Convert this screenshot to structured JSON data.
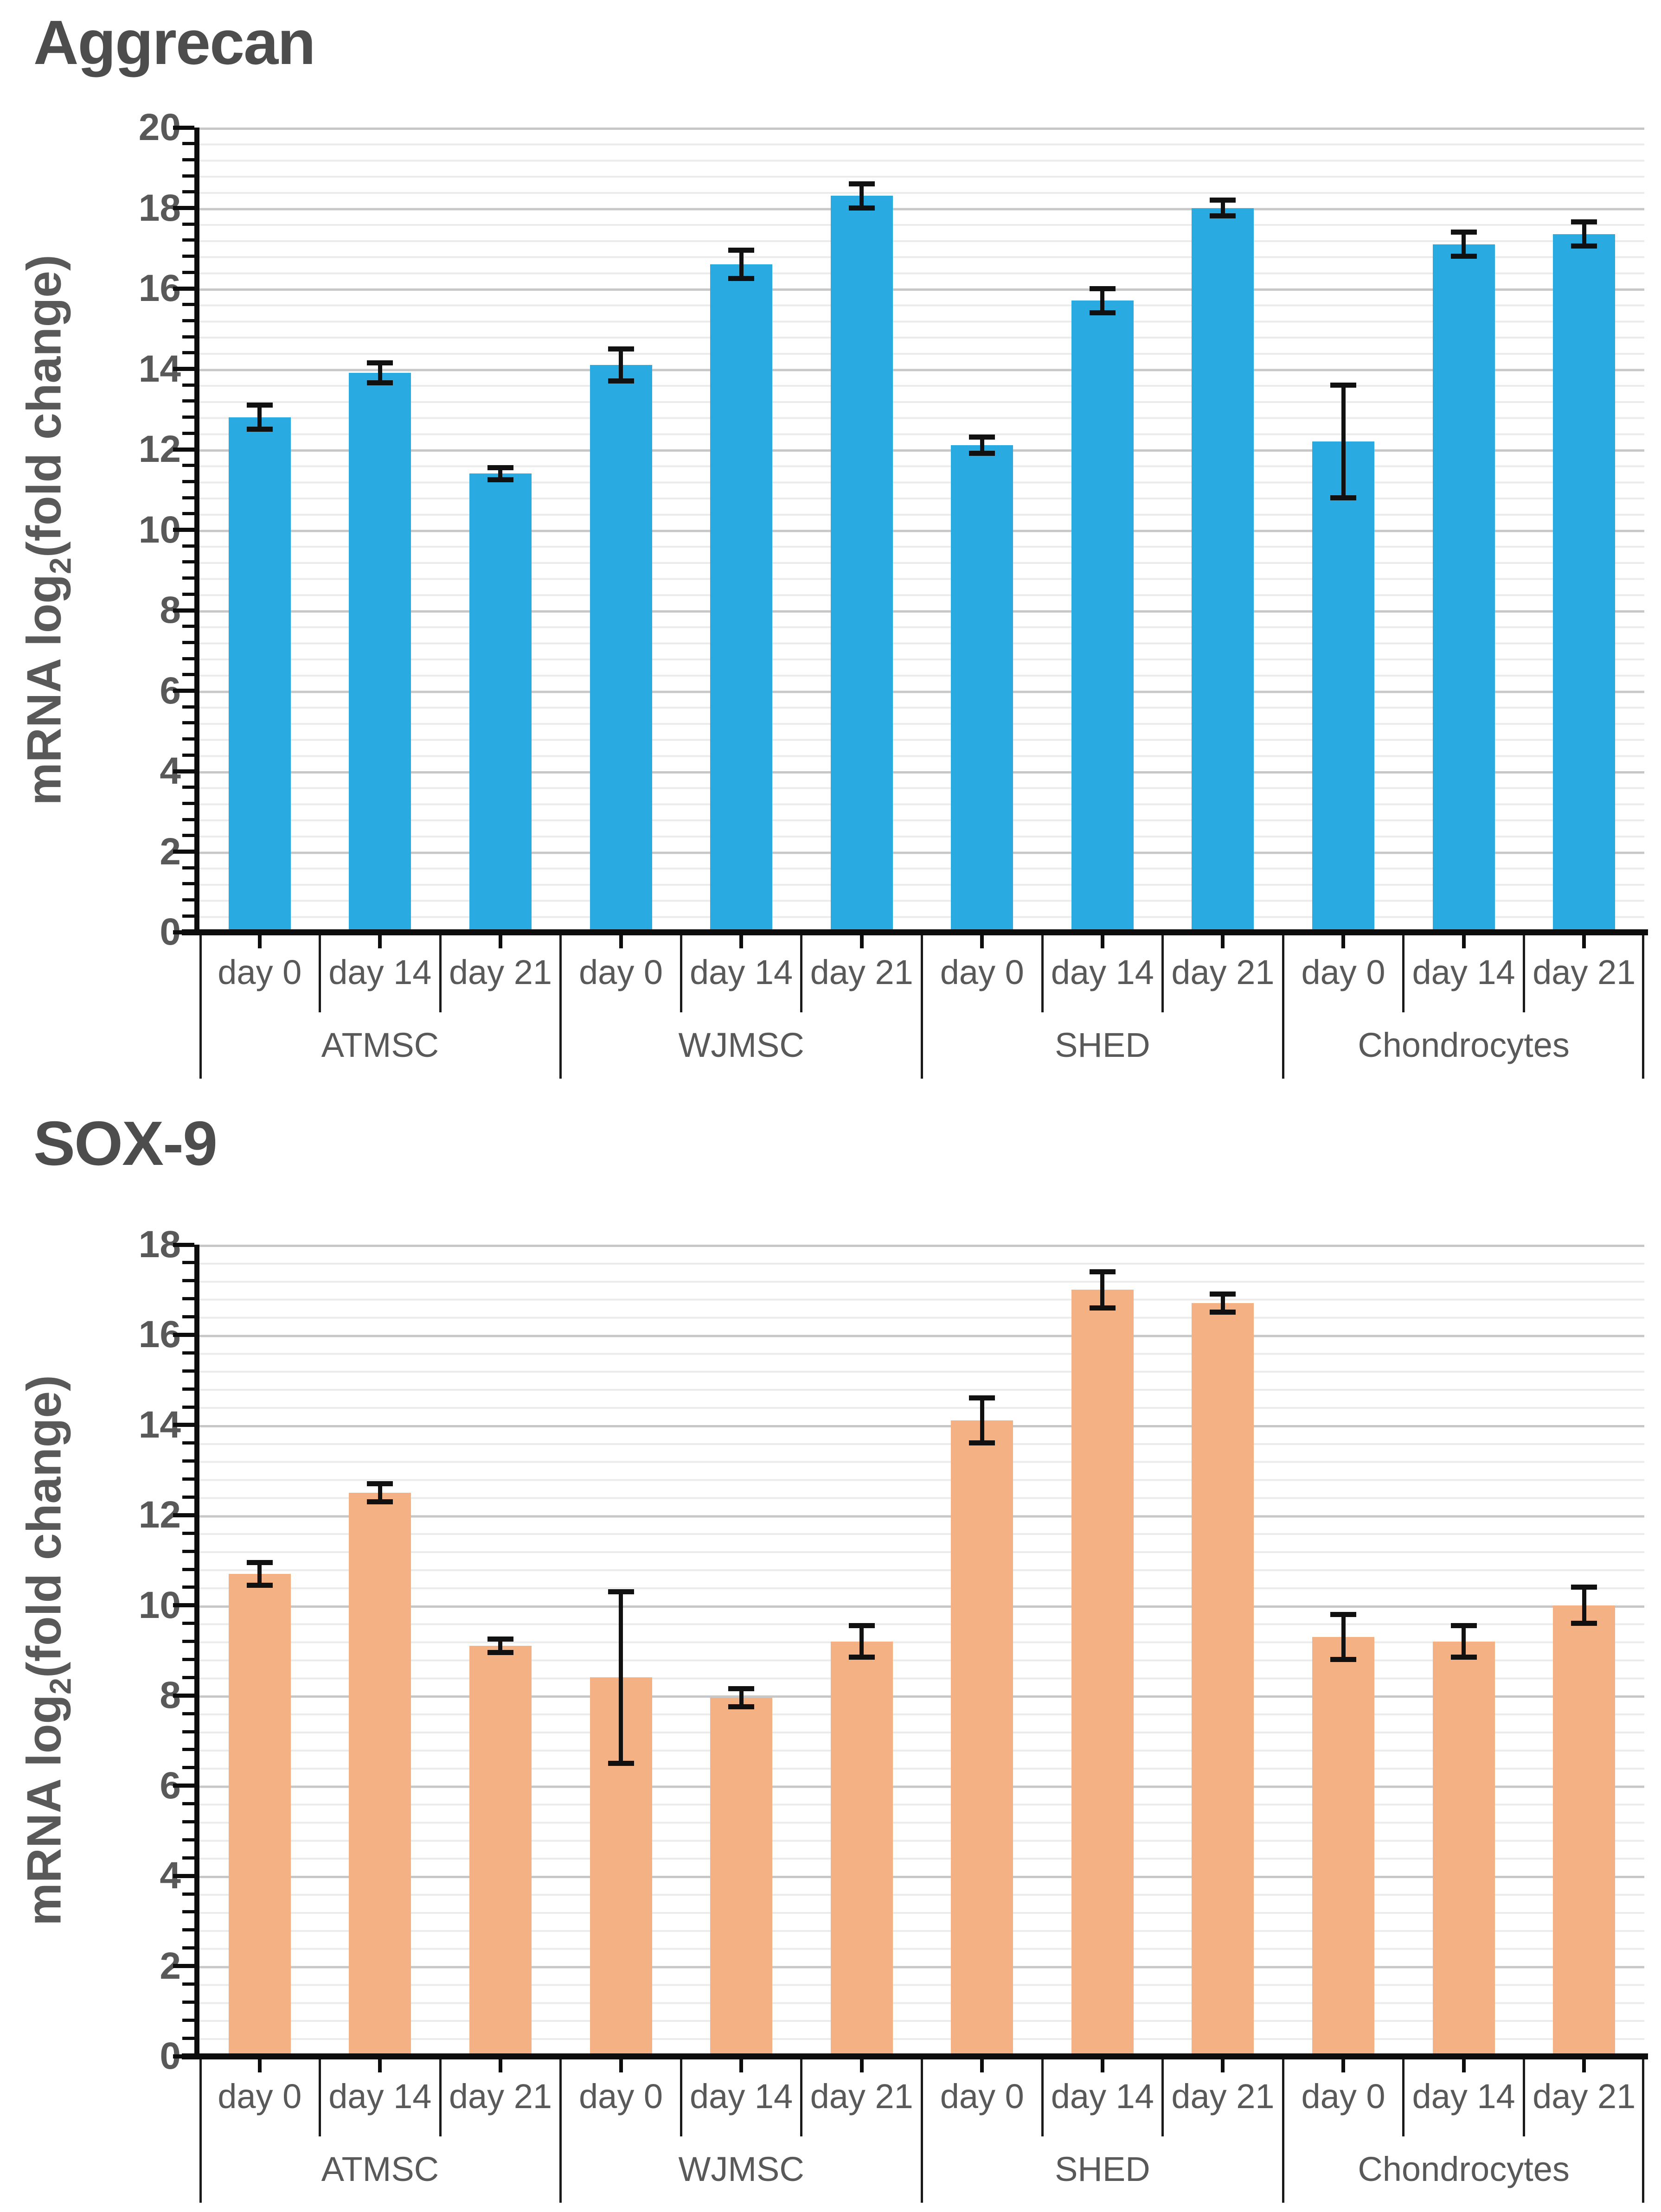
{
  "page": {
    "background": "#ffffff"
  },
  "chart_data": [
    {
      "type": "bar",
      "title": "Aggrecan",
      "ylabel": "mRNA log2(fold change)",
      "ylabel_parts": {
        "prefix": "mRNA log",
        "sub": "2",
        "suffix": "(fold change)"
      },
      "xlabel": "",
      "ylim": [
        0,
        20
      ],
      "major_gridline_step": 2,
      "minor_gridline_step": 0.4,
      "grid": "on",
      "legend": "none",
      "bar_color": "#29ABE2",
      "error_bar_color": "#111111",
      "y_tick_labels": [
        "20",
        "18",
        "16",
        "14",
        "12",
        "10",
        "8",
        "6",
        "4",
        "2",
        "0"
      ],
      "categories": [
        "day 0",
        "day 14",
        "day 21"
      ],
      "groups": [
        {
          "label": "ATMSC",
          "values": [
            12.8,
            13.9,
            11.4
          ],
          "errors": [
            0.3,
            0.25,
            0.15
          ]
        },
        {
          "label": "WJMSC",
          "values": [
            14.1,
            16.6,
            18.3
          ],
          "errors": [
            0.4,
            0.35,
            0.3
          ]
        },
        {
          "label": "SHED",
          "values": [
            12.1,
            15.7,
            18.0
          ],
          "errors": [
            0.2,
            0.3,
            0.2
          ]
        },
        {
          "label": "Chondrocytes",
          "values": [
            12.2,
            17.1,
            17.35
          ],
          "errors": [
            1.4,
            0.3,
            0.3
          ]
        }
      ]
    },
    {
      "type": "bar",
      "title": "SOX-9",
      "ylabel": "mRNA log2(fold change)",
      "ylabel_parts": {
        "prefix": "mRNA log",
        "sub": "2",
        "suffix": "(fold change)"
      },
      "xlabel": "",
      "ylim": [
        0,
        18
      ],
      "major_gridline_step": 2,
      "minor_gridline_step": 0.4,
      "grid": "on",
      "legend": "none",
      "bar_color": "#F4B183",
      "error_bar_color": "#111111",
      "y_tick_labels": [
        "18",
        "16",
        "14",
        "12",
        "10",
        "8",
        "6",
        "4",
        "2",
        "0"
      ],
      "categories": [
        "day 0",
        "day 14",
        "day 21"
      ],
      "groups": [
        {
          "label": "ATMSC",
          "values": [
            10.7,
            12.5,
            9.1
          ],
          "errors": [
            0.25,
            0.2,
            0.15
          ]
        },
        {
          "label": "WJMSC",
          "values": [
            8.4,
            7.95,
            9.2
          ],
          "errors": [
            1.9,
            0.2,
            0.35
          ]
        },
        {
          "label": "SHED",
          "values": [
            14.1,
            17.0,
            16.7
          ],
          "errors": [
            0.5,
            0.4,
            0.2
          ]
        },
        {
          "label": "Chondrocytes",
          "values": [
            9.3,
            9.2,
            10.0
          ],
          "errors": [
            0.5,
            0.35,
            0.4
          ]
        }
      ]
    }
  ]
}
